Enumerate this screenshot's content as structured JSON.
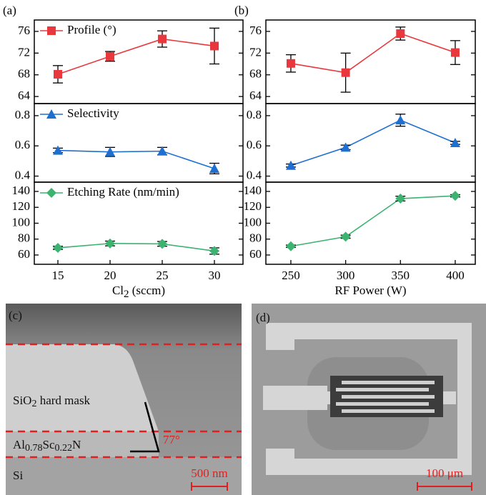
{
  "chart_data": [
    {
      "type": "line",
      "panel": "(a)",
      "xlim": [
        12.74,
        32.74
      ],
      "x": [
        15,
        20,
        25,
        30
      ],
      "ylim": [
        62.7,
        78.1
      ],
      "yticks": [
        64,
        68,
        72,
        76
      ],
      "series": [
        {
          "name": "Profile (°)",
          "color": "#e8383d",
          "marker": "square",
          "values": [
            68.1,
            71.4,
            74.6,
            73.3
          ],
          "errors": [
            1.6,
            0.9,
            1.5,
            3.3
          ]
        }
      ]
    },
    {
      "type": "line",
      "xlim": [
        12.74,
        32.74
      ],
      "x": [
        15,
        20,
        25,
        30
      ],
      "ylim": [
        0.36,
        0.88
      ],
      "yticks": [
        0.4,
        0.6,
        0.8
      ],
      "series": [
        {
          "name": "Selectivity",
          "color": "#1f6fd1",
          "marker": "triangle",
          "values": [
            0.57,
            0.56,
            0.565,
            0.45
          ],
          "errors": [
            0.015,
            0.03,
            0.025,
            0.035
          ]
        }
      ]
    },
    {
      "type": "line",
      "xlim": [
        12.74,
        32.74
      ],
      "x": [
        15,
        20,
        25,
        30
      ],
      "xticks": [
        15,
        20,
        25,
        30
      ],
      "xlabel": [
        "Cl",
        "2",
        " (sccm)"
      ],
      "ylim": [
        48.3,
        151.7
      ],
      "yticks": [
        60,
        80,
        100,
        120,
        140
      ],
      "series": [
        {
          "name": "Etching Rate (nm/min)",
          "color": "#3cb371",
          "marker": "diamond",
          "values": [
            69,
            74.5,
            74,
            65
          ],
          "errors": [
            2,
            3,
            3,
            4
          ]
        }
      ]
    },
    {
      "type": "line",
      "panel": "(b)",
      "xlim": [
        227.2,
        418.3
      ],
      "x": [
        250,
        300,
        350,
        400
      ],
      "ylim": [
        62.7,
        78.1
      ],
      "yticks": [
        64,
        68,
        72,
        76
      ],
      "series": [
        {
          "color": "#e8383d",
          "marker": "square",
          "values": [
            70.1,
            68.4,
            75.6,
            72.1
          ],
          "errors": [
            1.6,
            3.6,
            1.2,
            2.2
          ]
        }
      ]
    },
    {
      "type": "line",
      "xlim": [
        227.2,
        418.3
      ],
      "x": [
        250,
        300,
        350,
        400
      ],
      "ylim": [
        0.36,
        0.88
      ],
      "yticks": [
        0.4,
        0.6,
        0.8
      ],
      "series": [
        {
          "color": "#1f6fd1",
          "marker": "triangle",
          "values": [
            0.47,
            0.59,
            0.77,
            0.62
          ],
          "errors": [
            0.01,
            0.015,
            0.04,
            0.01
          ]
        }
      ]
    },
    {
      "type": "line",
      "xlim": [
        227.2,
        418.3
      ],
      "x": [
        250,
        300,
        350,
        400
      ],
      "xticks": [
        250,
        300,
        350,
        400
      ],
      "xlabel": [
        "RF Power (W)"
      ],
      "ylim": [
        48.3,
        151.7
      ],
      "yticks": [
        60,
        80,
        100,
        120,
        140
      ],
      "series": [
        {
          "color": "#3cb371",
          "marker": "diamond",
          "values": [
            71,
            83,
            131,
            134.5
          ],
          "errors": [
            1.5,
            2,
            3,
            1.5
          ]
        }
      ]
    }
  ],
  "images": [
    {
      "label": "(c)",
      "mask": [
        "SiO",
        "2",
        " hard mask"
      ],
      "film": [
        "Al",
        "0.78",
        "Sc",
        "0.22",
        "N"
      ],
      "substrate": "Si",
      "angle": "77°",
      "scale": "500 nm"
    },
    {
      "label": "(d)",
      "scale": "100 μm"
    }
  ]
}
